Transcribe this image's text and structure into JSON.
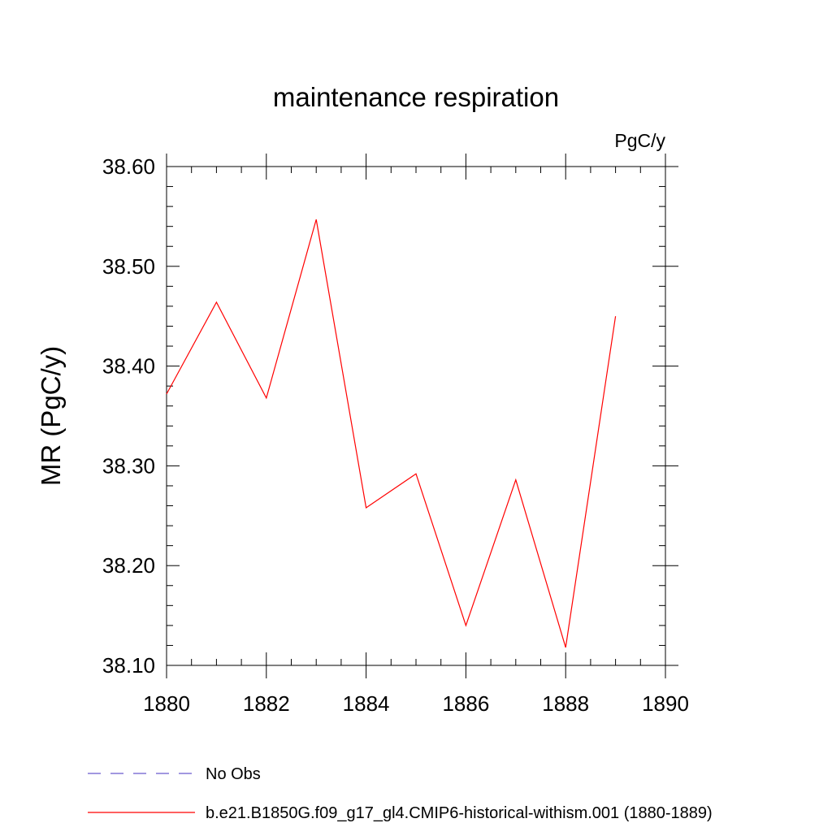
{
  "chart_data": {
    "type": "line",
    "title": "maintenance respiration",
    "units_label": "PgC/y",
    "xlabel": "",
    "ylabel": "MR  (PgC/y)",
    "xlim": [
      1880,
      1890
    ],
    "ylim": [
      38.1,
      38.6
    ],
    "x_ticks": [
      1880,
      1882,
      1884,
      1886,
      1888,
      1890
    ],
    "y_ticks": [
      38.1,
      38.2,
      38.3,
      38.4,
      38.5,
      38.6
    ],
    "x_tick_labels": [
      "1880",
      "1882",
      "1884",
      "1886",
      "1888",
      "1890"
    ],
    "y_tick_labels": [
      "38.10",
      "38.20",
      "38.30",
      "38.40",
      "38.50",
      "38.60"
    ],
    "grid": false,
    "legend_position": "bottom",
    "series": [
      {
        "name": "b.e21.B1850G.f09_g17_gl4.CMIP6-historical-withism.001 (1880-1889)",
        "color": "#ff0000",
        "style": "solid",
        "x": [
          1880,
          1881,
          1882,
          1883,
          1884,
          1885,
          1886,
          1887,
          1888,
          1889
        ],
        "values": [
          38.372,
          38.464,
          38.368,
          38.547,
          38.258,
          38.292,
          38.14,
          38.286,
          38.118,
          38.45
        ]
      }
    ],
    "legend": [
      {
        "label": "No Obs",
        "color": "#6a5acd",
        "style": "dashed"
      },
      {
        "label": "b.e21.B1850G.f09_g17_gl4.CMIP6-historical-withism.001 (1880-1889)",
        "color": "#ff0000",
        "style": "solid"
      }
    ]
  }
}
